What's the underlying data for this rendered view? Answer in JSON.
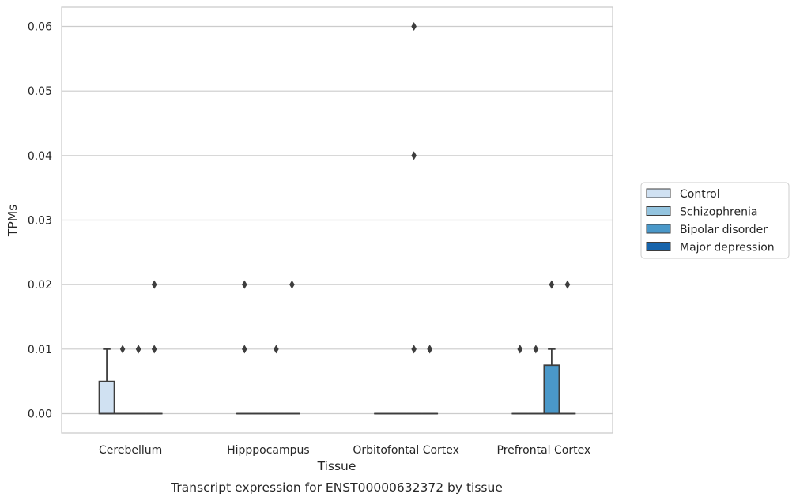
{
  "chart_data": {
    "type": "box",
    "title": "",
    "caption": "Transcript expression for ENST00000632372 by tissue",
    "xlabel": "Tissue",
    "ylabel": "TPMs",
    "ylim": [
      -0.003,
      0.063
    ],
    "yticks": [
      0.0,
      0.01,
      0.02,
      0.03,
      0.04,
      0.05,
      0.06
    ],
    "ytick_labels": [
      "0.00",
      "0.01",
      "0.02",
      "0.03",
      "0.04",
      "0.05",
      "0.06"
    ],
    "grid": "horizontal",
    "legend_position": "right",
    "categories": [
      "Cerebellum",
      "Hipppocampus",
      "Orbitofontal Cortex",
      "Prefrontal Cortex"
    ],
    "series": [
      {
        "name": "Control",
        "color": "#d0e1f2",
        "boxes": [
          {
            "q1": 0.0,
            "median": 0.0,
            "q3": 0.005,
            "whisker_low": 0.0,
            "whisker_high": 0.01,
            "outliers": []
          },
          {
            "q1": 0.0,
            "median": 0.0,
            "q3": 0.0,
            "whisker_low": 0.0,
            "whisker_high": 0.0,
            "outliers": [
              0.01,
              0.02
            ]
          },
          {
            "q1": 0.0,
            "median": 0.0,
            "q3": 0.0,
            "whisker_low": 0.0,
            "whisker_high": 0.0,
            "outliers": []
          },
          {
            "q1": 0.0,
            "median": 0.0,
            "q3": 0.0,
            "whisker_low": 0.0,
            "whisker_high": 0.0,
            "outliers": [
              0.01,
              0.01
            ]
          }
        ]
      },
      {
        "name": "Schizophrenia",
        "color": "#94c4df",
        "boxes": [
          {
            "q1": 0.0,
            "median": 0.0,
            "q3": 0.0,
            "whisker_low": 0.0,
            "whisker_high": 0.0,
            "outliers": [
              0.01
            ]
          },
          {
            "q1": 0.0,
            "median": 0.0,
            "q3": 0.0,
            "whisker_low": 0.0,
            "whisker_high": 0.0,
            "outliers": []
          },
          {
            "q1": 0.0,
            "median": 0.0,
            "q3": 0.0,
            "whisker_low": 0.0,
            "whisker_high": 0.0,
            "outliers": []
          },
          {
            "q1": 0.0,
            "median": 0.0,
            "q3": 0.0,
            "whisker_low": 0.0,
            "whisker_high": 0.0,
            "outliers": [
              0.01
            ]
          }
        ]
      },
      {
        "name": "Bipolar disorder",
        "color": "#4a98c9",
        "boxes": [
          {
            "q1": 0.0,
            "median": 0.0,
            "q3": 0.0,
            "whisker_low": 0.0,
            "whisker_high": 0.0,
            "outliers": [
              0.01,
              0.01
            ]
          },
          {
            "q1": 0.0,
            "median": 0.0,
            "q3": 0.0,
            "whisker_low": 0.0,
            "whisker_high": 0.0,
            "outliers": [
              0.01
            ]
          },
          {
            "q1": 0.0,
            "median": 0.0,
            "q3": 0.0,
            "whisker_low": 0.0,
            "whisker_high": 0.0,
            "outliers": [
              0.01,
              0.04,
              0.06
            ]
          },
          {
            "q1": 0.0,
            "median": 0.0,
            "q3": 0.0075,
            "whisker_low": 0.0,
            "whisker_high": 0.01,
            "outliers": [
              0.02
            ]
          }
        ]
      },
      {
        "name": "Major depression",
        "color": "#1764ab",
        "boxes": [
          {
            "q1": 0.0,
            "median": 0.0,
            "q3": 0.0,
            "whisker_low": 0.0,
            "whisker_high": 0.0,
            "outliers": [
              0.01,
              0.02
            ]
          },
          {
            "q1": 0.0,
            "median": 0.0,
            "q3": 0.0,
            "whisker_low": 0.0,
            "whisker_high": 0.0,
            "outliers": [
              0.02
            ]
          },
          {
            "q1": 0.0,
            "median": 0.0,
            "q3": 0.0,
            "whisker_low": 0.0,
            "whisker_high": 0.0,
            "outliers": [
              0.01,
              0.01
            ]
          },
          {
            "q1": 0.0,
            "median": 0.0,
            "q3": 0.0,
            "whisker_low": 0.0,
            "whisker_high": 0.0,
            "outliers": [
              0.02
            ]
          }
        ]
      }
    ]
  }
}
